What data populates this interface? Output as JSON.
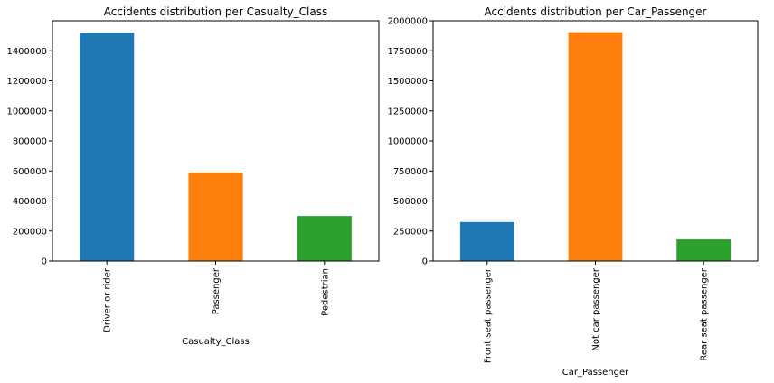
{
  "chart_data": [
    {
      "type": "bar",
      "title": "Accidents distribution per Casualty_Class",
      "xlabel": "Casualty_Class",
      "ylabel": "",
      "categories": [
        "Driver or rider",
        "Passenger",
        "Pedestrian"
      ],
      "values": [
        1520000,
        590000,
        300000
      ],
      "colors": [
        "#1f77b4",
        "#ff7f0e",
        "#2ca02c"
      ],
      "ylim": [
        0,
        1600000
      ],
      "yticks": [
        0,
        200000,
        400000,
        600000,
        800000,
        1000000,
        1200000,
        1400000
      ],
      "ytick_labels": [
        "0",
        "200000",
        "400000",
        "600000",
        "800000",
        "1000000",
        "1200000",
        "1400000"
      ]
    },
    {
      "type": "bar",
      "title": "Accidents distribution per Car_Passenger",
      "xlabel": "Car_Passenger",
      "ylabel": "",
      "categories": [
        "Front seat passenger",
        "Not car passenger",
        "Rear seat passenger"
      ],
      "values": [
        325000,
        1905000,
        180000
      ],
      "colors": [
        "#1f77b4",
        "#ff7f0e",
        "#2ca02c"
      ],
      "ylim": [
        0,
        2000000
      ],
      "yticks": [
        0,
        250000,
        500000,
        750000,
        1000000,
        1250000,
        1500000,
        1750000,
        2000000
      ],
      "ytick_labels": [
        "0",
        "250000",
        "500000",
        "750000",
        "1000000",
        "1250000",
        "1500000",
        "1750000",
        "2000000"
      ]
    }
  ]
}
